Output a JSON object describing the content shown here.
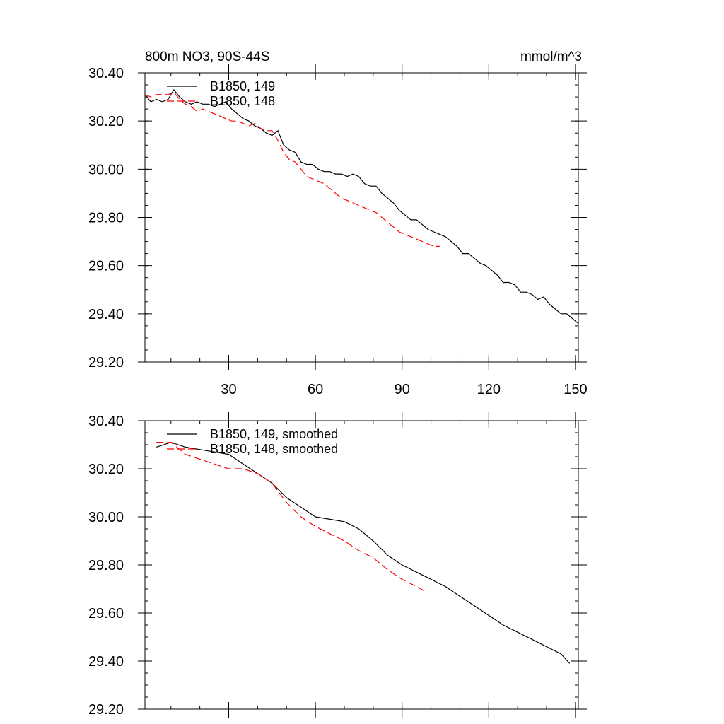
{
  "figure": {
    "title_left": "800m NO3, 90S-44S",
    "title_right": "mmol/m^3"
  },
  "chart_data": [
    {
      "type": "line",
      "panel": "top",
      "title": "800m NO3, 90S-44S",
      "units": "mmol/m^3",
      "xlim": [
        1,
        151
      ],
      "ylim": [
        29.2,
        30.4
      ],
      "xticks": [
        30,
        60,
        90,
        120,
        150
      ],
      "yticks": [
        29.2,
        29.4,
        29.6,
        29.8,
        30.0,
        30.2,
        30.4
      ],
      "yticklabels": [
        "29.20",
        "29.40",
        "29.60",
        "29.80",
        "30.00",
        "30.20",
        "30.40"
      ],
      "xticklabels": [
        "30",
        "60",
        "90",
        "120",
        "150"
      ],
      "legend_position": "top-left",
      "series": [
        {
          "name": "B1850, 149",
          "color": "#000000",
          "dash": "solid",
          "x": [
            1,
            3,
            5,
            7,
            9,
            11,
            13,
            15,
            17,
            19,
            21,
            23,
            25,
            27,
            29,
            31,
            33,
            35,
            37,
            39,
            41,
            43,
            45,
            47,
            49,
            51,
            53,
            55,
            57,
            59,
            61,
            63,
            65,
            67,
            69,
            71,
            73,
            75,
            77,
            79,
            81,
            83,
            85,
            87,
            89,
            91,
            93,
            95,
            97,
            99,
            101,
            103,
            105,
            107,
            109,
            111,
            113,
            115,
            117,
            119,
            121,
            123,
            125,
            127,
            129,
            131,
            133,
            135,
            137,
            139,
            141,
            143,
            145,
            147,
            149,
            151
          ],
          "y": [
            30.31,
            30.28,
            30.29,
            30.28,
            30.29,
            30.33,
            30.3,
            30.28,
            30.27,
            30.28,
            30.27,
            30.27,
            30.26,
            30.27,
            30.28,
            30.25,
            30.23,
            30.21,
            30.2,
            30.18,
            30.17,
            30.15,
            30.14,
            30.16,
            30.1,
            30.08,
            30.07,
            30.03,
            30.02,
            30.02,
            30.0,
            29.99,
            29.99,
            29.98,
            29.98,
            29.97,
            29.98,
            29.97,
            29.94,
            29.93,
            29.93,
            29.9,
            29.88,
            29.86,
            29.83,
            29.81,
            29.79,
            29.79,
            29.77,
            29.75,
            29.74,
            29.73,
            29.72,
            29.7,
            29.68,
            29.65,
            29.65,
            29.63,
            29.61,
            29.6,
            29.58,
            29.56,
            29.53,
            29.53,
            29.52,
            29.49,
            29.49,
            29.48,
            29.46,
            29.47,
            29.44,
            29.42,
            29.4,
            29.4,
            29.38,
            29.36
          ]
        },
        {
          "name": "B1850, 148",
          "color": "#ff0000",
          "dash": "dashed",
          "x": [
            1,
            3,
            5,
            7,
            9,
            11,
            13,
            15,
            17,
            19,
            21,
            23,
            25,
            27,
            29,
            31,
            33,
            35,
            37,
            39,
            41,
            43,
            45,
            47,
            49,
            51,
            53,
            55,
            57,
            59,
            61,
            63,
            65,
            67,
            69,
            71,
            73,
            75,
            77,
            79,
            81,
            83,
            85,
            87,
            89,
            91,
            93,
            95,
            97,
            99,
            101,
            103
          ],
          "y": [
            30.31,
            30.3,
            30.31,
            30.31,
            30.31,
            30.32,
            30.29,
            30.27,
            30.26,
            30.24,
            30.25,
            30.24,
            30.23,
            30.22,
            30.21,
            30.2,
            30.2,
            30.19,
            30.18,
            30.19,
            30.17,
            30.16,
            30.16,
            30.12,
            30.07,
            30.04,
            30.03,
            30.0,
            29.97,
            29.96,
            29.95,
            29.94,
            29.92,
            29.9,
            29.88,
            29.87,
            29.86,
            29.85,
            29.84,
            29.83,
            29.82,
            29.8,
            29.78,
            29.76,
            29.74,
            29.73,
            29.72,
            29.71,
            29.7,
            29.69,
            29.68,
            29.68
          ]
        }
      ]
    },
    {
      "type": "line",
      "panel": "bottom",
      "xlim": [
        1,
        151
      ],
      "ylim": [
        29.2,
        30.4
      ],
      "xticks": [
        30,
        60,
        90,
        120,
        150
      ],
      "yticks": [
        29.2,
        29.4,
        29.6,
        29.8,
        30.0,
        30.2,
        30.4
      ],
      "yticklabels": [
        "29.20",
        "29.40",
        "29.60",
        "29.80",
        "30.00",
        "30.20",
        "30.40"
      ],
      "legend_position": "top-left",
      "series": [
        {
          "name": "B1850, 149, smoothed",
          "color": "#000000",
          "dash": "solid",
          "x": [
            5,
            10,
            15,
            20,
            25,
            30,
            35,
            40,
            45,
            50,
            55,
            60,
            65,
            70,
            75,
            80,
            85,
            90,
            95,
            100,
            105,
            110,
            115,
            120,
            125,
            130,
            135,
            140,
            145,
            148
          ],
          "y": [
            30.29,
            30.31,
            30.29,
            30.28,
            30.27,
            30.26,
            30.22,
            30.18,
            30.14,
            30.08,
            30.04,
            30.0,
            29.99,
            29.98,
            29.95,
            29.9,
            29.84,
            29.8,
            29.77,
            29.74,
            29.71,
            29.67,
            29.63,
            29.59,
            29.55,
            29.52,
            29.49,
            29.46,
            29.43,
            29.39
          ]
        },
        {
          "name": "B1850, 148, smoothed",
          "color": "#ff0000",
          "dash": "dashed",
          "x": [
            5,
            10,
            15,
            20,
            25,
            30,
            35,
            40,
            45,
            50,
            55,
            60,
            65,
            70,
            75,
            80,
            85,
            90,
            95,
            98
          ],
          "y": [
            30.31,
            30.31,
            30.26,
            30.24,
            30.22,
            30.2,
            30.2,
            30.18,
            30.14,
            30.06,
            30.0,
            29.96,
            29.93,
            29.9,
            29.86,
            29.83,
            29.78,
            29.74,
            29.71,
            29.69
          ]
        }
      ]
    }
  ]
}
